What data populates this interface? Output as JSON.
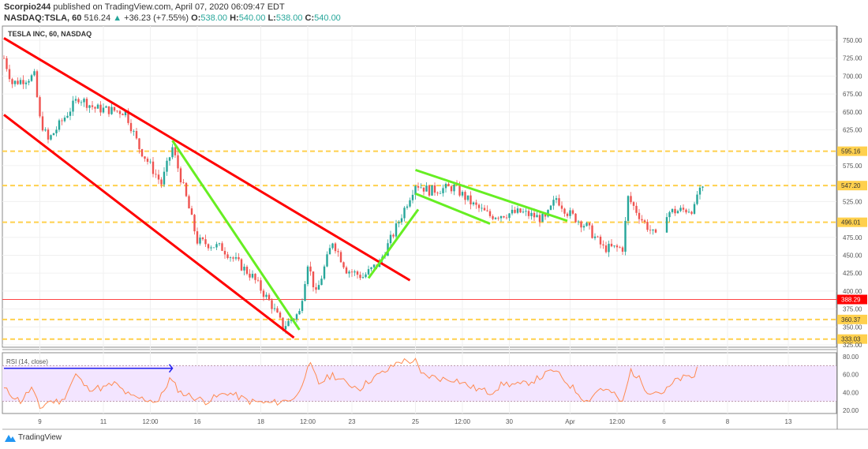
{
  "header": {
    "author": "Scorpio244",
    "published": "published on TradingView.com, April 07, 2020 06:09:47 EDT",
    "symbol": "NASDAQ:TSLA, 60",
    "last": "516.24",
    "change": "+36.23 (+7.55%)",
    "o_label": "O:",
    "o": "538.00",
    "h_label": "H:",
    "h": "540.00",
    "l_label": "L:",
    "l": "538.00",
    "c_label": "C:",
    "c": "540.00"
  },
  "chart_title": "TESLA INC, 60, NASDAQ",
  "rsi_label": "RSI (14, close)",
  "brand": "TradingView",
  "colors": {
    "up": "#26a69a",
    "down": "#ef5350",
    "trend_red": "#ff0000",
    "trend_green": "#66ee22",
    "level": "#ffd04d",
    "rsi": "#ff8a50",
    "rsi_band": "#f3e5ff",
    "arrow": "#2222ee"
  },
  "chart_data": {
    "type": "candlestick",
    "price_ticks": [
      "750.00",
      "725.00",
      "700.00",
      "675.00",
      "650.00",
      "625.00",
      "575.00",
      "525.00",
      "475.00",
      "450.00",
      "425.00",
      "400.00",
      "375.00",
      "350.00",
      "325.00"
    ],
    "price_tick_values": [
      750,
      725,
      700,
      675,
      650,
      625,
      575,
      525,
      475,
      450,
      425,
      400,
      375,
      350,
      325
    ],
    "ylim": [
      322,
      765
    ],
    "bars": 254,
    "x_ticks": [
      {
        "bar": 13,
        "label": "9"
      },
      {
        "bar": 36,
        "label": "11"
      },
      {
        "bar": 53,
        "label": "12:00"
      },
      {
        "bar": 70,
        "label": "16"
      },
      {
        "bar": 93,
        "label": "18"
      },
      {
        "bar": 110,
        "label": "12:00"
      },
      {
        "bar": 126,
        "label": "23"
      },
      {
        "bar": 149,
        "label": "25"
      },
      {
        "bar": 166,
        "label": "12:00"
      },
      {
        "bar": 183,
        "label": "30"
      },
      {
        "bar": 205,
        "label": "Apr"
      },
      {
        "bar": 222,
        "label": "12:00"
      },
      {
        "bar": 239,
        "label": "6"
      },
      {
        "bar": 262,
        "label": "8"
      },
      {
        "bar": 284,
        "label": "13"
      }
    ],
    "price_path": [
      [
        0,
        725
      ],
      [
        3,
        690
      ],
      [
        11,
        700
      ],
      [
        13,
        640
      ],
      [
        16,
        610
      ],
      [
        27,
        670
      ],
      [
        33,
        655
      ],
      [
        44,
        650
      ],
      [
        49,
        600
      ],
      [
        57,
        550
      ],
      [
        61,
        600
      ],
      [
        66,
        530
      ],
      [
        70,
        470
      ],
      [
        79,
        460
      ],
      [
        90,
        420
      ],
      [
        97,
        380
      ],
      [
        101,
        350
      ],
      [
        107,
        370
      ],
      [
        110,
        440
      ],
      [
        113,
        395
      ],
      [
        119,
        470
      ],
      [
        124,
        430
      ],
      [
        130,
        420
      ],
      [
        136,
        440
      ],
      [
        141,
        480
      ],
      [
        149,
        550
      ],
      [
        154,
        540
      ],
      [
        163,
        545
      ],
      [
        170,
        520
      ],
      [
        176,
        505
      ],
      [
        187,
        510
      ],
      [
        196,
        500
      ],
      [
        200,
        530
      ],
      [
        204,
        510
      ],
      [
        211,
        490
      ],
      [
        217,
        460
      ],
      [
        224,
        460
      ],
      [
        226,
        530
      ],
      [
        231,
        500
      ],
      [
        236,
        475
      ],
      [
        239,
        478
      ],
      [
        240,
        510
      ],
      [
        250,
        515
      ],
      [
        251,
        535
      ],
      [
        253,
        540
      ]
    ],
    "levels": [
      {
        "value": 595.16,
        "label": "595.16",
        "style": "dashed"
      },
      {
        "value": 547.2,
        "label": "547.20",
        "style": "dashed"
      },
      {
        "value": 496.01,
        "label": "496.01",
        "style": "dashed"
      },
      {
        "value": 360.37,
        "label": "360.37",
        "style": "dashed"
      },
      {
        "value": 333.03,
        "label": "333.03",
        "style": "dashed"
      },
      {
        "value": 388.29,
        "label": "388.29",
        "style": "solid-red"
      }
    ],
    "trendlines": [
      {
        "color": "red",
        "from": [
          0,
          753
        ],
        "to": [
          147,
          415
        ]
      },
      {
        "color": "red",
        "from": [
          0,
          646
        ],
        "to": [
          105,
          335
        ]
      },
      {
        "color": "green",
        "from": [
          61,
          610
        ],
        "to": [
          107,
          346
        ]
      },
      {
        "color": "green",
        "from": [
          132,
          418
        ],
        "to": [
          150,
          514
        ]
      },
      {
        "color": "green",
        "from": [
          149,
          569
        ],
        "to": [
          204,
          498
        ]
      },
      {
        "color": "green",
        "from": [
          149,
          536
        ],
        "to": [
          176,
          494
        ]
      }
    ],
    "rsi": {
      "ticks": [
        "80.00",
        "60.00",
        "40.00",
        "20.00"
      ],
      "tick_values": [
        80,
        60,
        40,
        20
      ],
      "band": [
        30,
        70
      ],
      "ylim": [
        15,
        82
      ],
      "path": [
        [
          0,
          44
        ],
        [
          6,
          30
        ],
        [
          10,
          45
        ],
        [
          13,
          22
        ],
        [
          16,
          30
        ],
        [
          21,
          30
        ],
        [
          26,
          60
        ],
        [
          30,
          45
        ],
        [
          36,
          45
        ],
        [
          40,
          50
        ],
        [
          46,
          35
        ],
        [
          56,
          30
        ],
        [
          60,
          55
        ],
        [
          64,
          40
        ],
        [
          73,
          30
        ],
        [
          81,
          40
        ],
        [
          89,
          30
        ],
        [
          96,
          28
        ],
        [
          101,
          30
        ],
        [
          106,
          35
        ],
        [
          109,
          60
        ],
        [
          111,
          70
        ],
        [
          114,
          50
        ],
        [
          119,
          60
        ],
        [
          124,
          50
        ],
        [
          129,
          45
        ],
        [
          133,
          55
        ],
        [
          139,
          65
        ],
        [
          143,
          75
        ],
        [
          149,
          75
        ],
        [
          151,
          60
        ],
        [
          159,
          55
        ],
        [
          163,
          55
        ],
        [
          170,
          45
        ],
        [
          176,
          40
        ],
        [
          181,
          50
        ],
        [
          187,
          48
        ],
        [
          193,
          55
        ],
        [
          199,
          65
        ],
        [
          206,
          45
        ],
        [
          211,
          30
        ],
        [
          216,
          45
        ],
        [
          220,
          40
        ],
        [
          224,
          28
        ],
        [
          227,
          65
        ],
        [
          230,
          55
        ],
        [
          233,
          42
        ],
        [
          239,
          40
        ],
        [
          244,
          55
        ],
        [
          250,
          58
        ],
        [
          251,
          68
        ]
      ],
      "arrow": {
        "from": [
          0,
          67
        ],
        "to": [
          61,
          67
        ]
      }
    }
  }
}
